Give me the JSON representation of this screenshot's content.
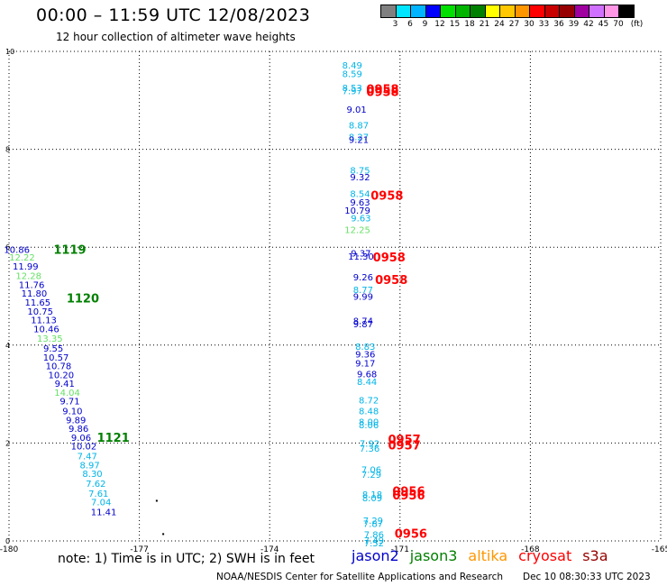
{
  "header": {
    "title": "00:00 – 11:59 UTC 12/08/2023",
    "subtitle": "12 hour collection of altimeter wave heights"
  },
  "colorbar": {
    "labels": [
      "3",
      "6",
      "9",
      "12",
      "15",
      "18",
      "21",
      "24",
      "27",
      "30",
      "33",
      "36",
      "39",
      "42",
      "45",
      "70",
      "(ft)"
    ],
    "colors": [
      "#808080",
      "#00e5ff",
      "#00b4ff",
      "#0000ff",
      "#00e000",
      "#00b400",
      "#008000",
      "#ffff00",
      "#ffc800",
      "#ff9600",
      "#ff0000",
      "#c80000",
      "#960000",
      "#a000a0",
      "#d070ff",
      "#ff96e6",
      "#000000"
    ]
  },
  "footer": {
    "note": "note:  1) Time is in UTC; 2) SWH is in feet",
    "legend": [
      {
        "label": "jason2",
        "color": "#0000cc"
      },
      {
        "label": "jason3",
        "color": "#008000"
      },
      {
        "label": "altika",
        "color": "#ff9600"
      },
      {
        "label": "cryosat",
        "color": "#ff0000"
      },
      {
        "label": "s3a",
        "color": "#960000"
      }
    ],
    "credit": "NOAA/NESDIS Center for Satellite Applications and Research",
    "generated": "Dec 10 08:30:33 UTC 2023"
  },
  "chart_data": {
    "type": "scatter",
    "title": "00:00 – 11:59 UTC 12/08/2023",
    "xlim": [
      -180,
      -165
    ],
    "ylim": [
      0,
      10
    ],
    "x_ticks": [
      "-180",
      "-177",
      "-174",
      "-171",
      "-168",
      "-165"
    ],
    "y_ticks": [
      "0",
      "2",
      "4",
      "6",
      "8",
      "10"
    ],
    "grid": true,
    "points": [
      {
        "x": -179.82,
        "y": 5.96,
        "label": "10.86",
        "color": "#0000cc"
      },
      {
        "x": -179.7,
        "y": 5.8,
        "label": "12.22",
        "color": "#66e066"
      },
      {
        "x": -179.62,
        "y": 5.62,
        "label": "11.99",
        "color": "#0000cc"
      },
      {
        "x": -179.55,
        "y": 5.42,
        "label": "12.28",
        "color": "#66e066"
      },
      {
        "x": -179.48,
        "y": 5.24,
        "label": "11.76",
        "color": "#0000cc"
      },
      {
        "x": -179.42,
        "y": 5.06,
        "label": "11.80",
        "color": "#0000cc"
      },
      {
        "x": -179.34,
        "y": 4.88,
        "label": "11.65",
        "color": "#0000cc"
      },
      {
        "x": -179.28,
        "y": 4.7,
        "label": "10.75",
        "color": "#0000cc"
      },
      {
        "x": -179.2,
        "y": 4.52,
        "label": "11.13",
        "color": "#0000cc"
      },
      {
        "x": -179.14,
        "y": 4.34,
        "label": "10.46",
        "color": "#0000cc"
      },
      {
        "x": -179.06,
        "y": 4.14,
        "label": "13.35",
        "color": "#66e066"
      },
      {
        "x": -178.98,
        "y": 3.94,
        "label": "9.55",
        "color": "#0000cc"
      },
      {
        "x": -178.92,
        "y": 3.76,
        "label": "10.57",
        "color": "#0000cc"
      },
      {
        "x": -178.86,
        "y": 3.58,
        "label": "10.78",
        "color": "#0000cc"
      },
      {
        "x": -178.8,
        "y": 3.4,
        "label": "10.20",
        "color": "#0000cc"
      },
      {
        "x": -178.72,
        "y": 3.22,
        "label": "9.41",
        "color": "#0000cc"
      },
      {
        "x": -178.66,
        "y": 3.04,
        "label": "14.04",
        "color": "#66e066"
      },
      {
        "x": -178.6,
        "y": 2.86,
        "label": "9.71",
        "color": "#0000cc"
      },
      {
        "x": -178.54,
        "y": 2.66,
        "label": "9.10",
        "color": "#0000cc"
      },
      {
        "x": -178.46,
        "y": 2.48,
        "label": "9.89",
        "color": "#0000cc"
      },
      {
        "x": -178.4,
        "y": 2.3,
        "label": "9.86",
        "color": "#0000cc"
      },
      {
        "x": -178.34,
        "y": 2.12,
        "label": "9.06",
        "color": "#0000cc"
      },
      {
        "x": -178.28,
        "y": 1.94,
        "label": "10.02",
        "color": "#0000cc"
      },
      {
        "x": -178.2,
        "y": 1.74,
        "label": "7.47",
        "color": "#00b4e6"
      },
      {
        "x": -178.14,
        "y": 1.56,
        "label": "8.97",
        "color": "#00b4e6"
      },
      {
        "x": -178.08,
        "y": 1.38,
        "label": "8.30",
        "color": "#00b4e6"
      },
      {
        "x": -178.0,
        "y": 1.18,
        "label": "7.62",
        "color": "#00b4e6"
      },
      {
        "x": -177.94,
        "y": 0.98,
        "label": "7.61",
        "color": "#00b4e6"
      },
      {
        "x": -177.88,
        "y": 0.8,
        "label": "7.04",
        "color": "#00b4e6"
      },
      {
        "x": -177.82,
        "y": 0.6,
        "label": "11.41",
        "color": "#0000cc"
      },
      {
        "x": -172.1,
        "y": 9.72,
        "label": "8.49",
        "color": "#00b4e6"
      },
      {
        "x": -172.1,
        "y": 9.55,
        "label": "8.59",
        "color": "#00b4e6"
      },
      {
        "x": -172.1,
        "y": 9.26,
        "label": "8.53",
        "color": "#00b4e6"
      },
      {
        "x": -172.1,
        "y": 9.2,
        "label": "7.97",
        "color": "#00b4e6"
      },
      {
        "x": -172.0,
        "y": 8.82,
        "label": "9.01",
        "color": "#0000cc"
      },
      {
        "x": -171.95,
        "y": 8.5,
        "label": "8.87",
        "color": "#00b4e6"
      },
      {
        "x": -171.95,
        "y": 8.26,
        "label": "8.27",
        "color": "#00b4e6"
      },
      {
        "x": -171.95,
        "y": 8.2,
        "label": "9.21",
        "color": "#0000cc"
      },
      {
        "x": -171.92,
        "y": 7.58,
        "label": "8.75",
        "color": "#00b4e6"
      },
      {
        "x": -171.92,
        "y": 7.44,
        "label": "9.32",
        "color": "#0000cc"
      },
      {
        "x": -171.92,
        "y": 7.1,
        "label": "8.54",
        "color": "#00b4e6"
      },
      {
        "x": -171.92,
        "y": 6.92,
        "label": "9.63",
        "color": "#0000cc"
      },
      {
        "x": -171.98,
        "y": 6.76,
        "label": "10.79",
        "color": "#0000cc"
      },
      {
        "x": -171.9,
        "y": 6.6,
        "label": "9.63",
        "color": "#00b4e6"
      },
      {
        "x": -171.98,
        "y": 6.36,
        "label": "12.25",
        "color": "#66e066"
      },
      {
        "x": -171.9,
        "y": 5.88,
        "label": "9.37",
        "color": "#0000cc"
      },
      {
        "x": -171.9,
        "y": 5.82,
        "label": "11.30",
        "color": "#0000cc"
      },
      {
        "x": -171.85,
        "y": 5.4,
        "label": "9.26",
        "color": "#0000cc"
      },
      {
        "x": -171.85,
        "y": 5.14,
        "label": "8.77",
        "color": "#00b4e6"
      },
      {
        "x": -171.85,
        "y": 5.0,
        "label": "9.99",
        "color": "#0000cc"
      },
      {
        "x": -171.85,
        "y": 4.5,
        "label": "8.74",
        "color": "#0000cc"
      },
      {
        "x": -171.85,
        "y": 4.44,
        "label": "9.87",
        "color": "#0000cc"
      },
      {
        "x": -171.8,
        "y": 3.98,
        "label": "8.83",
        "color": "#00b4e6"
      },
      {
        "x": -171.8,
        "y": 3.82,
        "label": "9.36",
        "color": "#0000cc"
      },
      {
        "x": -171.8,
        "y": 3.64,
        "label": "9.17",
        "color": "#0000cc"
      },
      {
        "x": -171.76,
        "y": 3.42,
        "label": "9.68",
        "color": "#0000cc"
      },
      {
        "x": -171.76,
        "y": 3.26,
        "label": "8.44",
        "color": "#00b4e6"
      },
      {
        "x": -171.72,
        "y": 2.88,
        "label": "8.72",
        "color": "#00b4e6"
      },
      {
        "x": -171.72,
        "y": 2.66,
        "label": "8.48",
        "color": "#00b4e6"
      },
      {
        "x": -171.72,
        "y": 2.44,
        "label": "8.00",
        "color": "#00b4e6"
      },
      {
        "x": -171.72,
        "y": 2.38,
        "label": "8.06",
        "color": "#00b4e6"
      },
      {
        "x": -171.7,
        "y": 2.0,
        "label": "7.92",
        "color": "#00b4e6"
      },
      {
        "x": -171.7,
        "y": 1.9,
        "label": "7.36",
        "color": "#00b4e6"
      },
      {
        "x": -171.66,
        "y": 1.46,
        "label": "7.06",
        "color": "#00b4e6"
      },
      {
        "x": -171.66,
        "y": 1.36,
        "label": "7.29",
        "color": "#00b4e6"
      },
      {
        "x": -171.64,
        "y": 0.96,
        "label": "8.18",
        "color": "#00b4e6"
      },
      {
        "x": -171.64,
        "y": 0.88,
        "label": "8.09",
        "color": "#00b4e6"
      },
      {
        "x": -171.62,
        "y": 0.42,
        "label": "7.29",
        "color": "#00b4e6"
      },
      {
        "x": -171.62,
        "y": 0.36,
        "label": "7.87",
        "color": "#00b4e6"
      },
      {
        "x": -171.6,
        "y": 0.14,
        "label": "7.86",
        "color": "#00b4e6"
      },
      {
        "x": -171.6,
        "y": 0.02,
        "label": "7.49",
        "color": "#00b4e6"
      },
      {
        "x": -171.6,
        "y": -0.04,
        "label": "7.52",
        "color": "#00b4e6"
      }
    ],
    "times": [
      {
        "x": -178.6,
        "y": 5.96,
        "label": "1119",
        "color": "#008000"
      },
      {
        "x": -178.3,
        "y": 4.96,
        "label": "1120",
        "color": "#008000"
      },
      {
        "x": -177.6,
        "y": 2.12,
        "label": "1121",
        "color": "#008000"
      },
      {
        "x": -171.4,
        "y": 9.24,
        "label": "0958",
        "color": "#ff0000"
      },
      {
        "x": -171.4,
        "y": 9.18,
        "label": "0958",
        "color": "#ff0000"
      },
      {
        "x": -171.3,
        "y": 7.06,
        "label": "0958",
        "color": "#ff0000"
      },
      {
        "x": -171.25,
        "y": 5.8,
        "label": "0958",
        "color": "#ff0000"
      },
      {
        "x": -171.2,
        "y": 5.34,
        "label": "0958",
        "color": "#ff0000"
      },
      {
        "x": -170.9,
        "y": 2.08,
        "label": "0957",
        "color": "#ff0000"
      },
      {
        "x": -170.9,
        "y": 1.96,
        "label": "0957",
        "color": "#ff0000"
      },
      {
        "x": -170.8,
        "y": 1.02,
        "label": "0956",
        "color": "#ff0000"
      },
      {
        "x": -170.8,
        "y": 0.94,
        "label": "0956",
        "color": "#ff0000"
      },
      {
        "x": -170.75,
        "y": 0.16,
        "label": "0956",
        "color": "#ff0000"
      }
    ],
    "markers": [
      {
        "x": -176.6,
        "y": 0.82
      },
      {
        "x": -176.45,
        "y": 0.14
      }
    ]
  }
}
